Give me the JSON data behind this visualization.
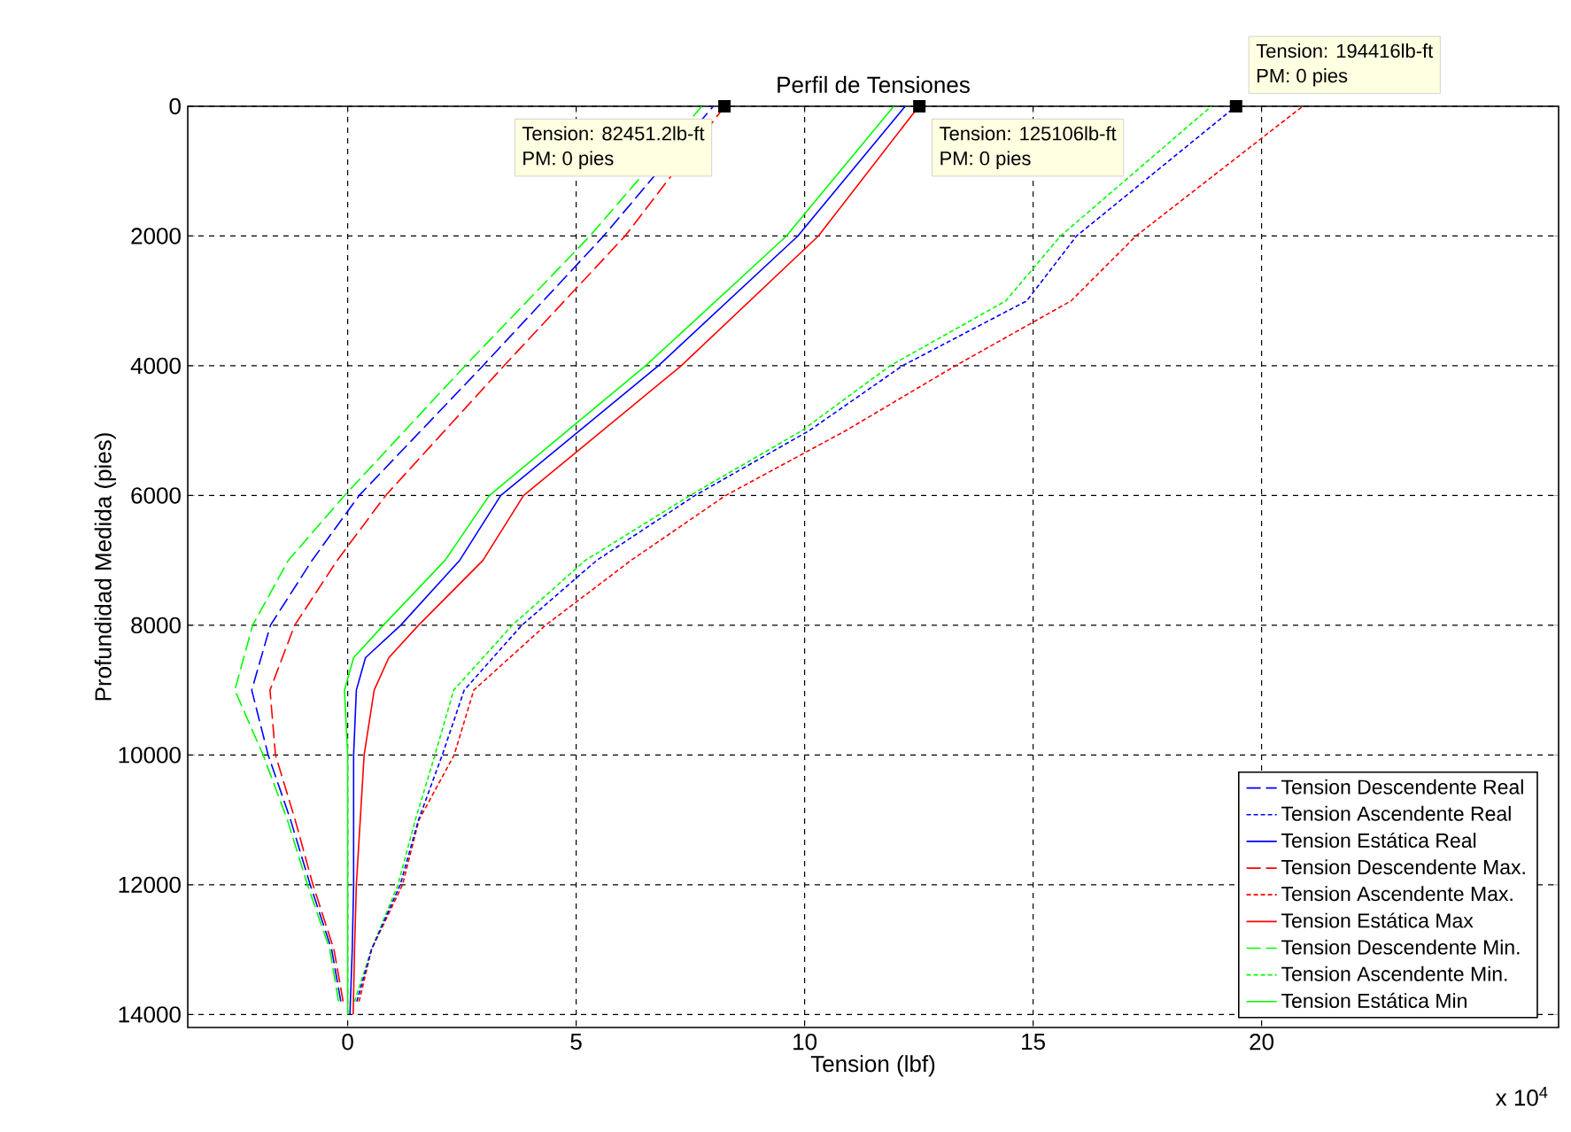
{
  "chart_data": {
    "type": "line",
    "title": "Perfil de Tensiones",
    "xlabel": "Tension (lbf)",
    "ylabel": "Profundidad Medida (pies)",
    "xlim": [
      -3.5,
      26.5
    ],
    "xticks": [
      0,
      5,
      10,
      15,
      20
    ],
    "ylim": [
      14200,
      0
    ],
    "yticks": [
      0,
      2000,
      4000,
      6000,
      8000,
      10000,
      12000,
      14000
    ],
    "grid": true,
    "legend": "bottom right",
    "series": [
      {
        "name": "Tension Descendente Real",
        "color": "#0000ff",
        "line_style": "dashed",
        "x": [
          8.0,
          5.6,
          2.96,
          0.25,
          -0.78,
          -1.69,
          -2.1,
          -1.74,
          -1.25,
          -0.82,
          -0.35,
          -0.15
        ],
        "values": [
          0,
          2000,
          4000,
          6000,
          7000,
          8000,
          9000,
          10000,
          11000,
          12000,
          13000,
          13800
        ]
      },
      {
        "name": "Tension Ascendente Real",
        "color": "#0000ff",
        "line_style": "dotted",
        "x": [
          19.44,
          15.95,
          14.86,
          12.14,
          10.1,
          7.6,
          5.45,
          3.81,
          2.55,
          2.07,
          1.55,
          1.15,
          0.52,
          0.2
        ],
        "values": [
          0,
          2000,
          3000,
          4000,
          5000,
          6000,
          7000,
          8000,
          9000,
          10000,
          11000,
          12000,
          13000,
          13800
        ]
      },
      {
        "name": "Tension Estática Real",
        "color": "#0000ff",
        "line_style": "solid",
        "x": [
          12.2,
          9.85,
          6.8,
          3.35,
          2.45,
          1.16,
          0.39,
          0.19,
          0.13,
          0.13,
          0.1,
          0.05
        ],
        "values": [
          0,
          2000,
          4000,
          6000,
          7000,
          8000,
          8500,
          9000,
          10000,
          12000,
          13000,
          14000
        ]
      },
      {
        "name": "Tension Descendente Max.",
        "color": "#ff0000",
        "line_style": "dashed",
        "x": [
          8.25,
          6.07,
          3.42,
          0.83,
          -0.23,
          -1.16,
          -1.7,
          -1.58,
          -1.15,
          -0.76,
          -0.3,
          -0.1
        ],
        "values": [
          0,
          2000,
          4000,
          6000,
          7000,
          8000,
          9000,
          10000,
          11000,
          12000,
          13000,
          13800
        ]
      },
      {
        "name": "Tension Ascendente Max.",
        "color": "#ff0000",
        "line_style": "dotted",
        "x": [
          20.9,
          17.25,
          15.83,
          13.3,
          10.9,
          8.27,
          6.2,
          4.33,
          2.76,
          2.33,
          1.56,
          1.2,
          0.52,
          0.25
        ],
        "values": [
          0,
          2000,
          3000,
          4000,
          5000,
          6000,
          7000,
          8000,
          9000,
          10000,
          11000,
          12000,
          13000,
          13800
        ]
      },
      {
        "name": "Tension Estática Max",
        "color": "#ff0000",
        "line_style": "solid",
        "x": [
          12.5,
          10.3,
          7.3,
          3.85,
          2.96,
          1.55,
          0.9,
          0.58,
          0.36,
          0.19,
          0.15,
          0.12
        ],
        "values": [
          0,
          2000,
          4000,
          6000,
          7000,
          8000,
          8500,
          9000,
          10000,
          12000,
          13000,
          14000
        ]
      },
      {
        "name": "Tension Descendente Min.",
        "color": "#00ff00",
        "line_style": "dashed",
        "x": [
          7.75,
          5.3,
          2.57,
          -0.07,
          -1.3,
          -2.08,
          -2.47,
          -1.85,
          -1.32,
          -0.88,
          -0.39,
          -0.2
        ],
        "values": [
          0,
          2000,
          4000,
          6000,
          7000,
          8000,
          9000,
          10000,
          11000,
          12000,
          13000,
          13800
        ]
      },
      {
        "name": "Tension Ascendente Min.",
        "color": "#00ff00",
        "line_style": "dotted",
        "x": [
          18.9,
          15.6,
          14.4,
          11.87,
          9.94,
          7.49,
          5.2,
          3.6,
          2.32,
          1.91,
          1.48,
          1.1,
          0.52,
          0.15
        ],
        "values": [
          0,
          2000,
          3000,
          4000,
          5000,
          6000,
          7000,
          8000,
          9000,
          10000,
          11000,
          12000,
          13000,
          13800
        ]
      },
      {
        "name": "Tension Estática Min",
        "color": "#00ff00",
        "line_style": "solid",
        "x": [
          11.95,
          9.6,
          6.52,
          3.1,
          2.13,
          0.78,
          0.13,
          -0.07,
          0,
          0,
          0,
          0
        ],
        "values": [
          0,
          2000,
          4000,
          6000,
          7000,
          8000,
          8500,
          9000,
          10000,
          12000,
          13000,
          14000
        ]
      }
    ],
    "annotations": [
      "x 10$^{4}$",
      {
        "text": "Tension: 82451.2lb-ft",
        "x": 8.24512,
        "y": 0
      },
      "PM: 0 pies",
      {
        "text": "Tension: 125106lb-ft",
        "x": 12.5106,
        "y": 0
      },
      "PM: 0 pies",
      {
        "text": "Tension: 194416lb-ft",
        "x": 19.4416,
        "y": 0
      },
      "PM: 0 pies"
    ]
  }
}
